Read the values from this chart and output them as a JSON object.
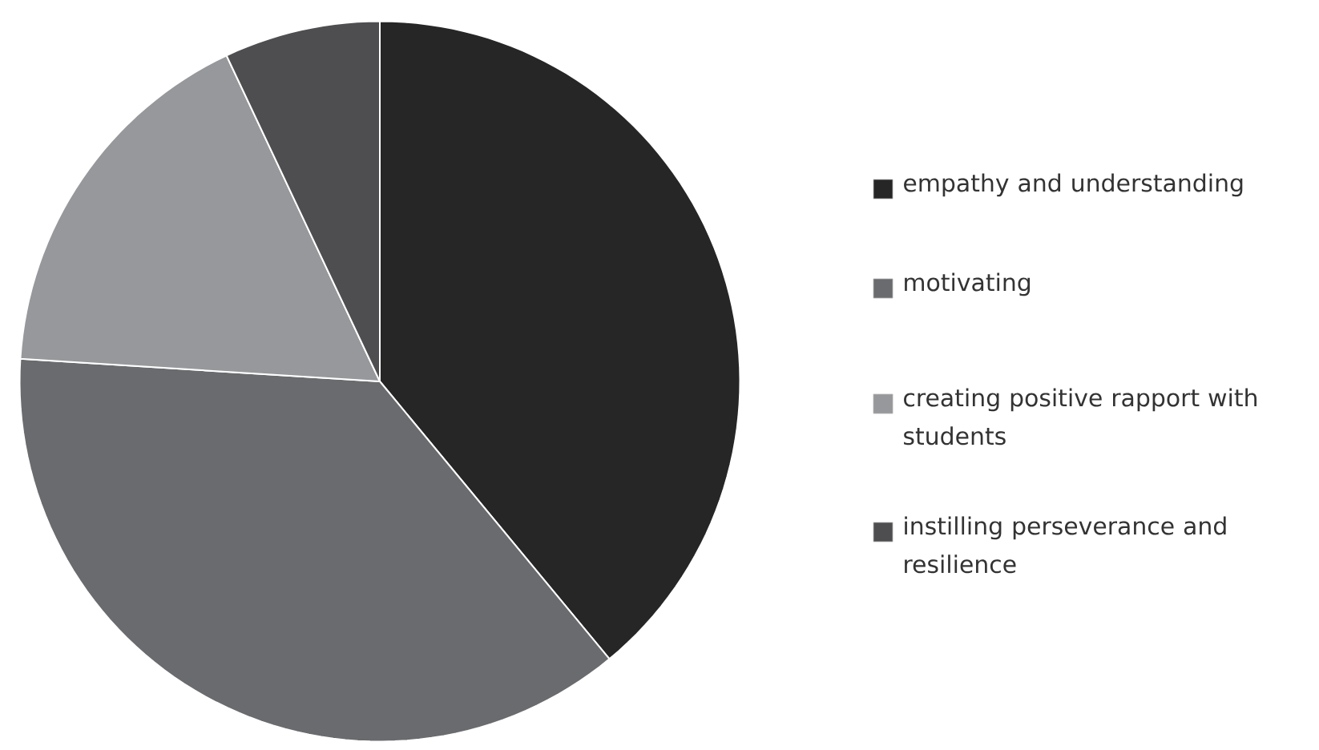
{
  "chart_data": {
    "type": "pie",
    "categories": [
      "empathy and understanding",
      "motivating",
      "creating positive rapport with students",
      "instilling perseverance and resilience"
    ],
    "values": [
      39,
      37,
      17,
      7
    ],
    "colors": [
      "#262626",
      "#6a6b6e",
      "#97989b",
      "#4e4e50"
    ],
    "legend": "right"
  }
}
